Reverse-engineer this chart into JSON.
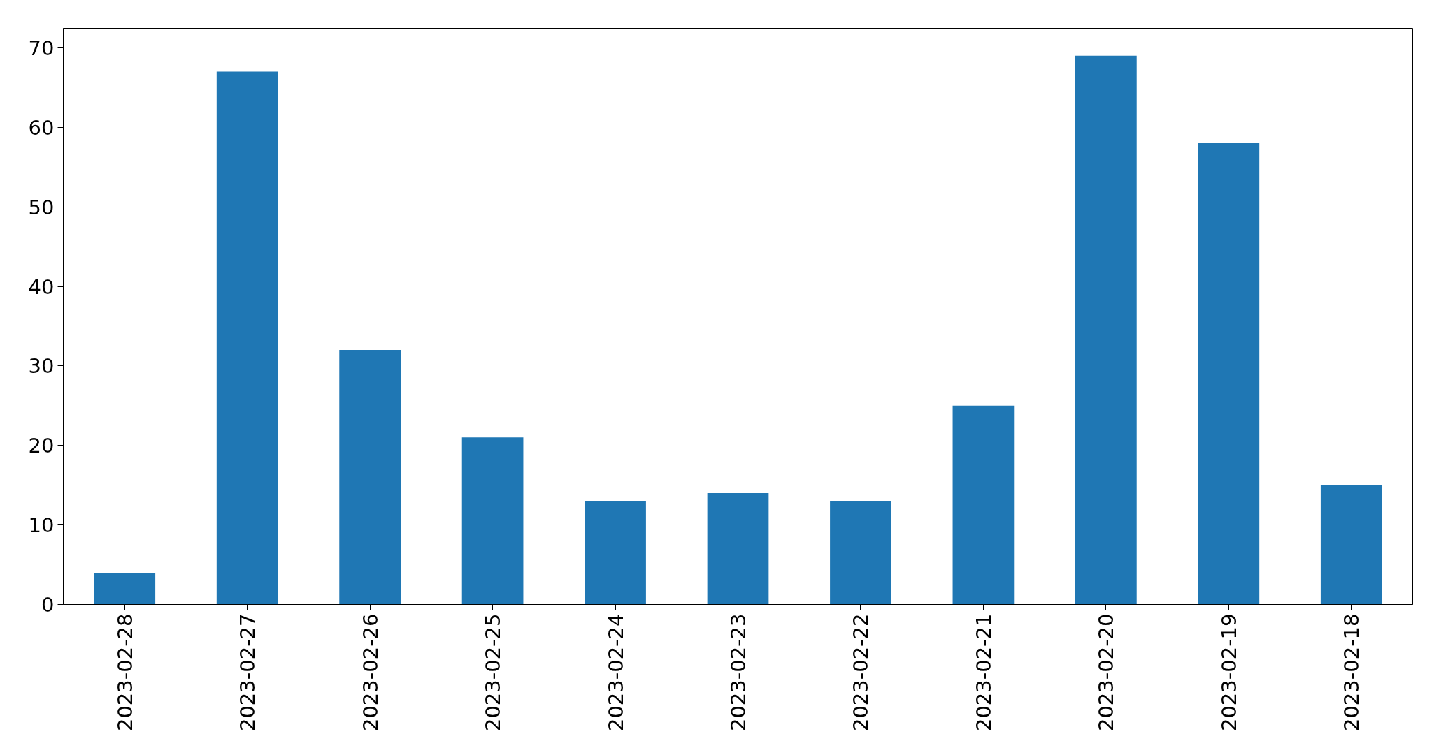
{
  "chart_data": {
    "type": "bar",
    "categories": [
      "2023-02-28",
      "2023-02-27",
      "2023-02-26",
      "2023-02-25",
      "2023-02-24",
      "2023-02-23",
      "2023-02-22",
      "2023-02-21",
      "2023-02-20",
      "2023-02-19",
      "2023-02-18"
    ],
    "values": [
      4,
      67,
      32,
      21,
      13,
      14,
      13,
      25,
      69,
      58,
      15
    ],
    "color": "#1f77b4",
    "ylim": [
      0,
      72.45
    ],
    "yticks": [
      0,
      10,
      20,
      30,
      40,
      50,
      60,
      70
    ],
    "grid": false
  }
}
